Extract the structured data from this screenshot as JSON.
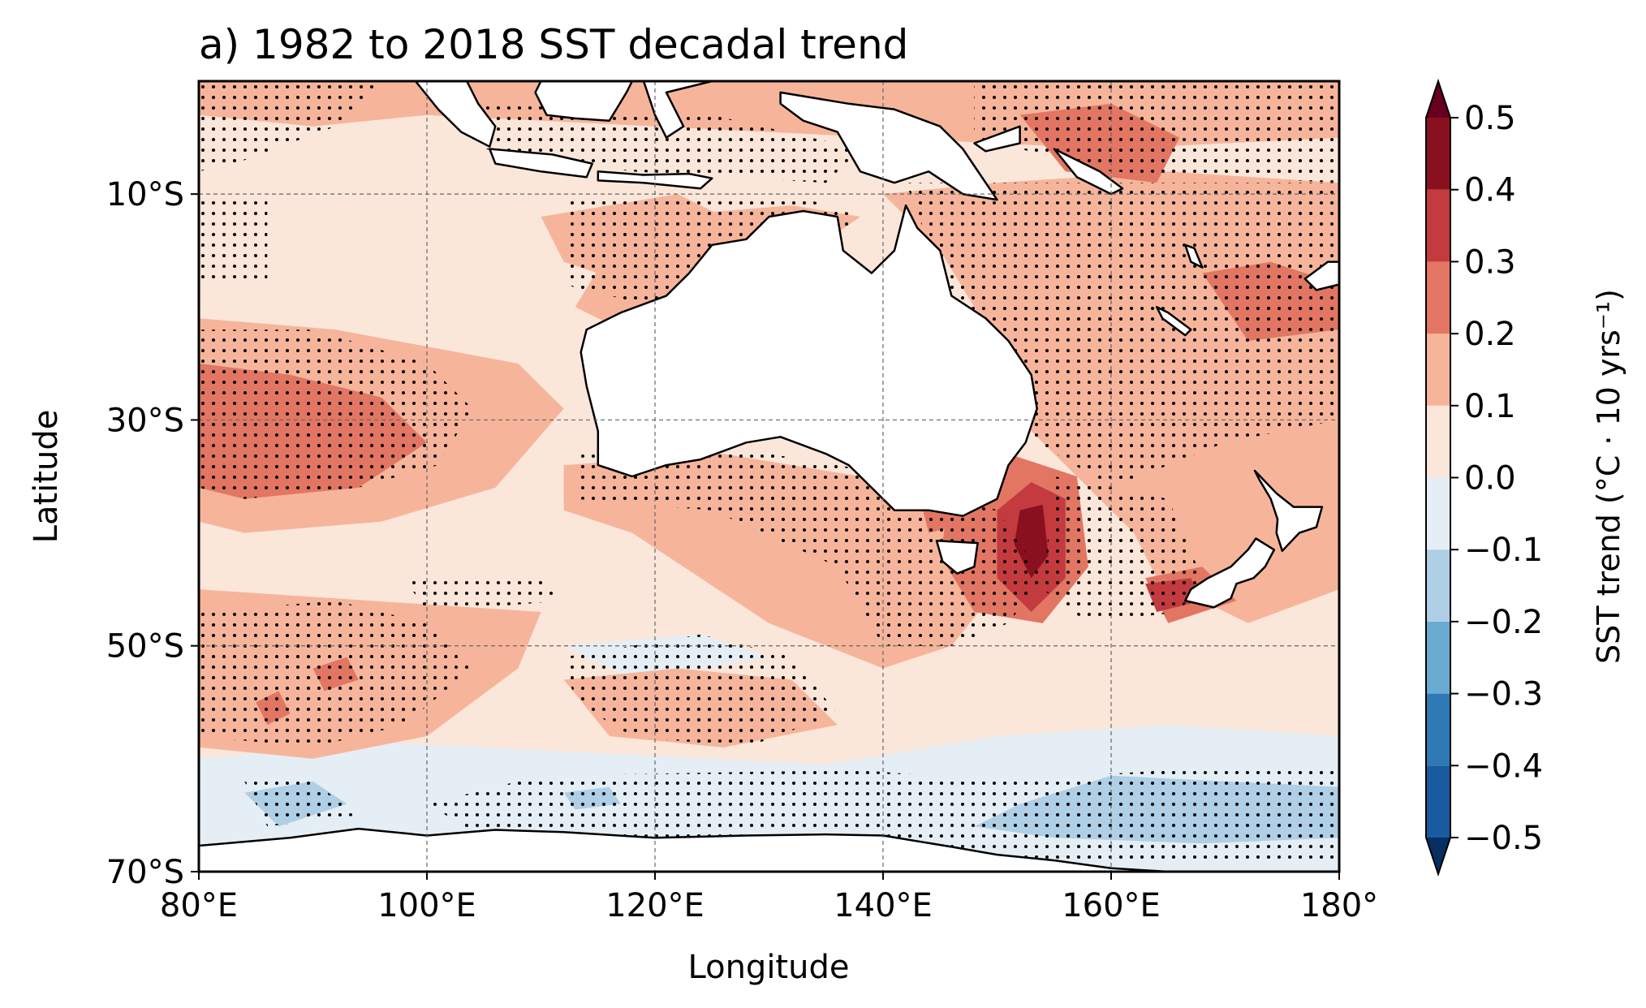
{
  "title": "a) 1982 to 2018 SST decadal trend",
  "xlabel": "Longitude",
  "ylabel": "Latitude",
  "colorbar": {
    "label": "SST trend (°C · 10 yrs⁻¹)",
    "levels": [
      -0.5,
      -0.4,
      -0.3,
      -0.2,
      -0.1,
      0.0,
      0.1,
      0.2,
      0.3,
      0.4,
      0.5
    ],
    "tick_labels": [
      "−0.5",
      "−0.4",
      "−0.3",
      "−0.2",
      "−0.1",
      "0.0",
      "0.1",
      "0.2",
      "0.3",
      "0.4",
      "0.5"
    ],
    "colors": [
      "#1a5aa0",
      "#2f79b5",
      "#6aabd2",
      "#aecfe5",
      "#e5eef5",
      "#fbe6da",
      "#f6b59b",
      "#e27662",
      "#c33b3e",
      "#89101f"
    ],
    "extend_colors": {
      "min": "#053061",
      "max": "#67001f"
    }
  },
  "chart_data": {
    "type": "heatmap",
    "title": "a) 1982 to 2018 SST decadal trend",
    "xlabel": "Longitude",
    "ylabel": "Latitude",
    "xlim": [
      80,
      180
    ],
    "ylim": [
      -70,
      0
    ],
    "x_ticks": [
      {
        "value": 80,
        "label": "80°E"
      },
      {
        "value": 100,
        "label": "100°E"
      },
      {
        "value": 120,
        "label": "120°E"
      },
      {
        "value": 140,
        "label": "140°E"
      },
      {
        "value": 160,
        "label": "160°E"
      },
      {
        "value": 180,
        "label": "180°"
      }
    ],
    "y_ticks": [
      {
        "value": -10,
        "label": "10°S"
      },
      {
        "value": -30,
        "label": "30°S"
      },
      {
        "value": -50,
        "label": "50°S"
      },
      {
        "value": -70,
        "label": "70°S"
      }
    ],
    "grid": true,
    "grid_lons": [
      100,
      120,
      140,
      160
    ],
    "grid_lats": [
      -10,
      -30,
      -50
    ],
    "field": {
      "background_level": 0.05,
      "regions": [
        {
          "desc": "Indian Ocean subtropical band",
          "lon": [
            80,
            110
          ],
          "lat": [
            -38,
            -22
          ],
          "value": 0.2
        },
        {
          "desc": "Indian Ocean subtropical core",
          "lon": [
            80,
            100
          ],
          "lat": [
            -34,
            -25
          ],
          "value": 0.3
        },
        {
          "desc": "Tasman Sea hotspot",
          "lon": [
            145,
            160
          ],
          "lat": [
            -48,
            -34
          ],
          "value": 0.3
        },
        {
          "desc": "Tasman Sea core",
          "lon": [
            150,
            156
          ],
          "lat": [
            -46,
            -36
          ],
          "value": 0.4
        },
        {
          "desc": "Coral Sea",
          "lon": [
            144,
            180
          ],
          "lat": [
            -28,
            -8
          ],
          "value": 0.2
        },
        {
          "desc": "Western Pacific warm pool",
          "lon": [
            145,
            180
          ],
          "lat": [
            -12,
            0
          ],
          "value": 0.2
        },
        {
          "desc": "Southern Ocean cooling",
          "lon": [
            160,
            180
          ],
          "lat": [
            -68,
            -60
          ],
          "value": -0.2
        },
        {
          "desc": "Southern Ocean slight cooling",
          "lon": [
            80,
            180
          ],
          "lat": [
            -68,
            -58
          ],
          "value": -0.1
        }
      ]
    }
  }
}
